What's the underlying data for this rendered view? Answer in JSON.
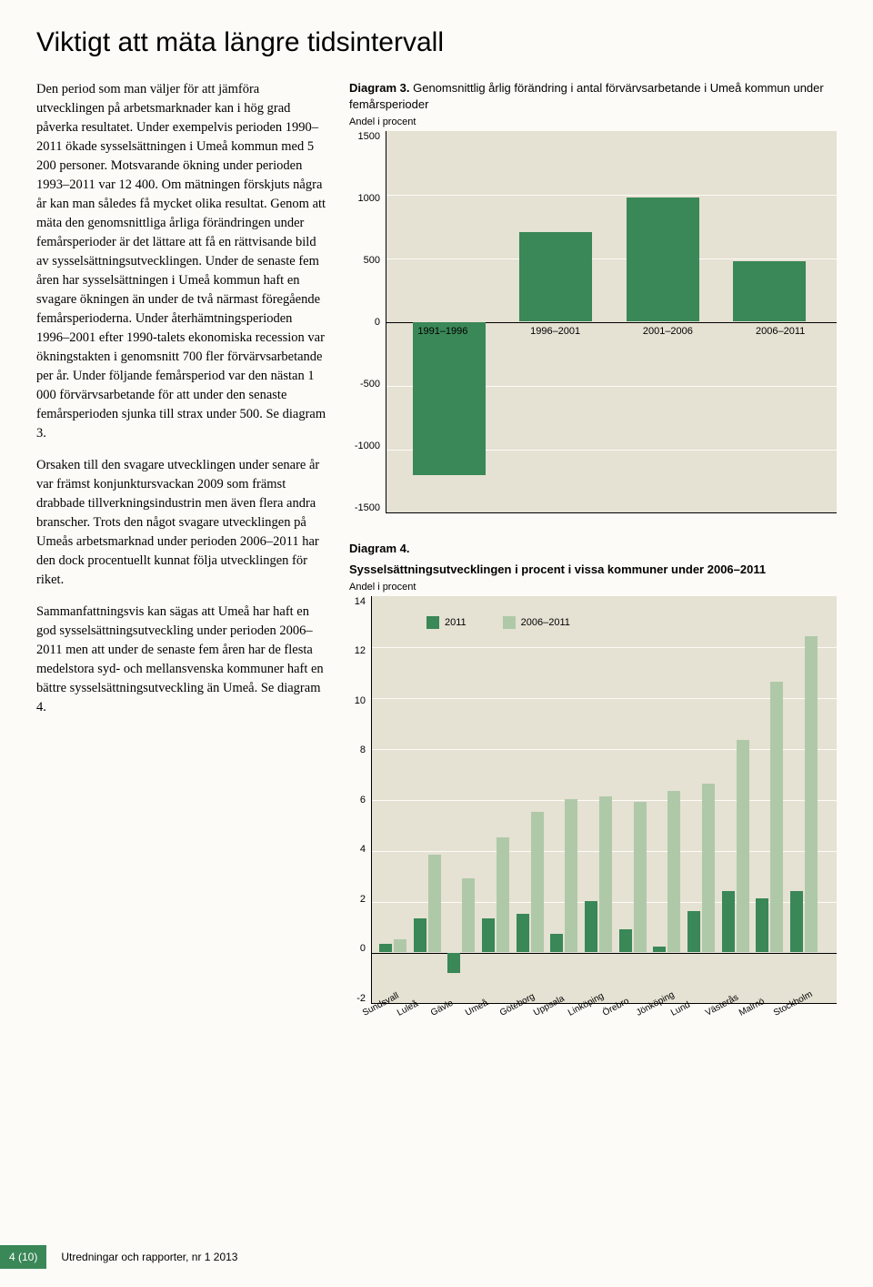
{
  "title": "Viktigt att mäta längre tidsintervall",
  "body_p1": "Den period som man väljer för att jämföra utvecklingen på arbetsmarknader kan i hög grad påverka resultatet. Under exempelvis perioden 1990–2011 ökade sysselsättningen i Umeå kommun med 5 200 personer. Motsvarande ökning under perioden 1993–2011 var 12 400. Om mätningen förskjuts några år kan man således få mycket olika resultat. Genom att mäta den genomsnittliga årliga förändringen under femårsperioder är det lättare att få en rättvisande bild av sysselsättningsutvecklingen. Under de senaste fem åren har sysselsättningen i Umeå kommun haft en svagare ökningen än under de två närmast föregående femårsperioderna. Under återhämtningsperioden 1996–2001 efter 1990-talets ekonomiska recession var ökningstakten i genomsnitt 700 fler förvärvsarbetande per år. Under följande femårsperiod var den nästan 1 000 förvärvsarbetande för att under den senaste femårsperioden sjunka till strax under 500. Se diagram 3.",
  "body_p2": "Orsaken till den svagare utvecklingen under senare år var främst konjunktursvackan 2009 som främst drabbade tillverkningsindustrin men även flera andra branscher. Trots den något svagare utvecklingen på Umeås arbetsmarknad under perioden 2006–2011 har den dock procentuellt kunnat följa utvecklingen för riket.",
  "body_p3": "Sammanfattningsvis kan sägas att Umeå har haft en god sysselsättningsutveckling under perioden 2006–2011 men att under de senaste fem åren har de flesta medelstora syd- och mellansvenska kommuner haft en bättre sysselsättningsutveckling än Umeå. Se diagram 4.",
  "chart3": {
    "title_strong": "Diagram 3.",
    "title_rest": " Genomsnittlig årlig förändring i antal förvärvsarbetande i Umeå kommun under femårsperioder",
    "subtitle": "Andel i procent",
    "yticks": [
      "1500",
      "1000",
      "500",
      "0",
      "-500",
      "-1000",
      "-1500"
    ],
    "ylim": [
      -1500,
      1500
    ],
    "categories": [
      "1991–1996",
      "1996–2001",
      "2001–2006",
      "2006–2011"
    ],
    "values": [
      -1200,
      700,
      975,
      475
    ],
    "bar_color": "#3a8757",
    "plot_bg": "#e5e1d3",
    "grid_color": "#fdfbf7"
  },
  "chart4": {
    "title_strong": "Diagram 4.",
    "title_rest": "",
    "title_line2": "Sysselsättningsutvecklingen i procent i vissa kommuner under 2006–2011",
    "subtitle": "Andel i procent",
    "yticks": [
      "14",
      "12",
      "10",
      "8",
      "6",
      "4",
      "2",
      "0",
      "-2"
    ],
    "ylim": [
      -2,
      14
    ],
    "categories": [
      "Sundsvall",
      "Luleå",
      "Gävle",
      "Umeå",
      "Göteborg",
      "Uppsala",
      "Linköping",
      "Örebro",
      "Jönköping",
      "Lund",
      "Västerås",
      "Malmö",
      "Stockholm"
    ],
    "series": [
      {
        "name": "2011",
        "color": "#3a8757",
        "values": [
          0.3,
          1.3,
          -0.8,
          1.3,
          1.5,
          0.7,
          2.0,
          0.9,
          0.2,
          1.6,
          2.4,
          2.1,
          2.4
        ]
      },
      {
        "name": "2006–2011",
        "color": "#afc9a8",
        "values": [
          0.5,
          3.8,
          2.9,
          4.5,
          5.5,
          6.0,
          6.1,
          5.9,
          6.3,
          6.6,
          8.3,
          10.6,
          12.4
        ]
      }
    ],
    "plot_bg": "#e5e1d3"
  },
  "footer": {
    "page": "4 (10)",
    "pub": "Utredningar och rapporter, nr 1 2013"
  }
}
